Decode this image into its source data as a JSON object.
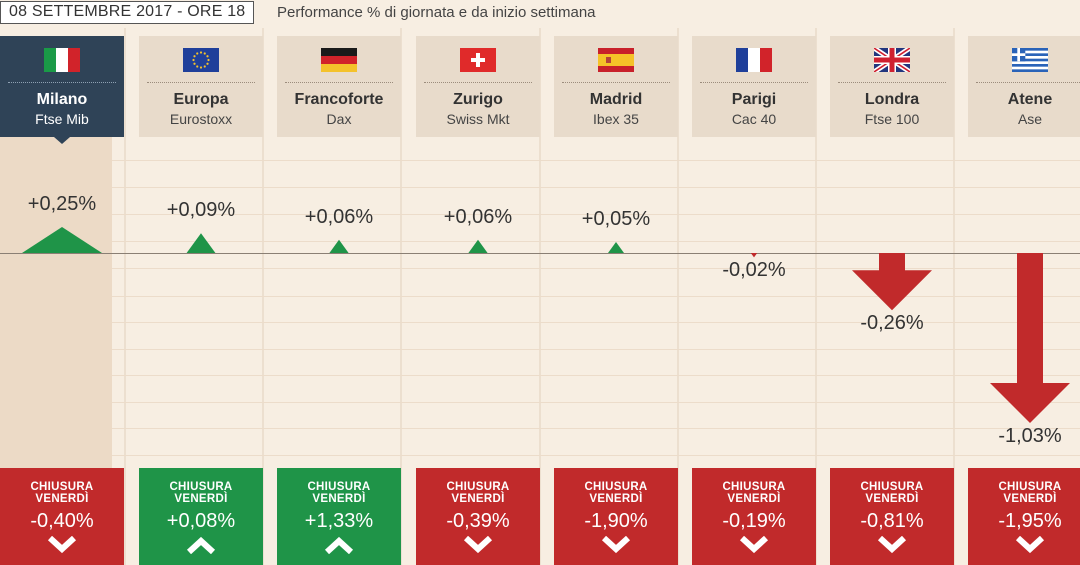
{
  "header": {
    "date_label": "08 SETTEMBRE 2017 - ORE 18",
    "subtitle": "Performance % di giornata e da inizio settimana"
  },
  "closing_title_line1": "CHIUSURA",
  "closing_title_line2": "VENERDÌ",
  "colors": {
    "positive": "#1f9448",
    "negative": "#c12a2b",
    "active_card": "#2f4357",
    "card": "#e8dbcb",
    "background": "#f7eee2"
  },
  "markets": [
    {
      "name": "Milano",
      "index": "Ftse Mib",
      "flag": "italy-flag",
      "daily_label": "+0,25%",
      "weekly_label": "-0,40%",
      "active": true
    },
    {
      "name": "Europa",
      "index": "Eurostoxx",
      "flag": "eu-flag",
      "daily_label": "+0,09%",
      "weekly_label": "+0,08%",
      "active": false
    },
    {
      "name": "Francoforte",
      "index": "Dax",
      "flag": "germany-flag",
      "daily_label": "+0,06%",
      "weekly_label": "+1,33%",
      "active": false
    },
    {
      "name": "Zurigo",
      "index": "Swiss Mkt",
      "flag": "switzerland-flag",
      "daily_label": "+0,06%",
      "weekly_label": "-0,39%",
      "active": false
    },
    {
      "name": "Madrid",
      "index": "Ibex 35",
      "flag": "spain-flag",
      "daily_label": "+0,05%",
      "weekly_label": "-1,90%",
      "active": false
    },
    {
      "name": "Parigi",
      "index": "Cac 40",
      "flag": "france-flag",
      "daily_label": "-0,02%",
      "weekly_label": "-0,19%",
      "active": false
    },
    {
      "name": "Londra",
      "index": "Ftse 100",
      "flag": "uk-flag",
      "daily_label": "-0,26%",
      "weekly_label": "-0,81%",
      "active": false
    },
    {
      "name": "Atene",
      "index": "Ase",
      "flag": "greece-flag",
      "daily_label": "-1,03%",
      "weekly_label": "-1,95%",
      "active": false
    }
  ],
  "chart_data": {
    "type": "bar",
    "categories": [
      "Milano",
      "Europa",
      "Francoforte",
      "Zurigo",
      "Madrid",
      "Parigi",
      "Londra",
      "Atene"
    ],
    "series": [
      {
        "values": [
          0.25,
          0.09,
          0.06,
          0.06,
          0.05,
          -0.02,
          -0.26,
          -1.03
        ]
      },
      {
        "name": "CHIUSURA VENERDÌ",
        "values": [
          -0.4,
          0.08,
          1.33,
          -0.39,
          -1.9,
          -0.19,
          -0.81,
          -1.95
        ]
      }
    ],
    "unit": "%"
  }
}
